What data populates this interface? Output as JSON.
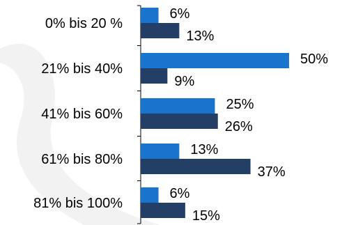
{
  "chart_data": {
    "type": "bar",
    "orientation": "horizontal",
    "categories": [
      "0% bis 20 %",
      "21% bis 40%",
      "41% bis 60%",
      "61% bis 80%",
      "81% bis 100%"
    ],
    "series": [
      {
        "values": [
          6,
          50,
          25,
          13,
          6
        ],
        "labels": [
          "6%",
          "50%",
          "25%",
          "13%",
          "6%"
        ],
        "color": "#1874cd"
      },
      {
        "values": [
          13,
          9,
          26,
          37,
          15
        ],
        "labels": [
          "13%",
          "9%",
          "26%",
          "37%",
          "15%"
        ],
        "color": "#233f66"
      }
    ],
    "xlim": [
      0,
      50
    ],
    "legend": "none",
    "grid": false
  }
}
